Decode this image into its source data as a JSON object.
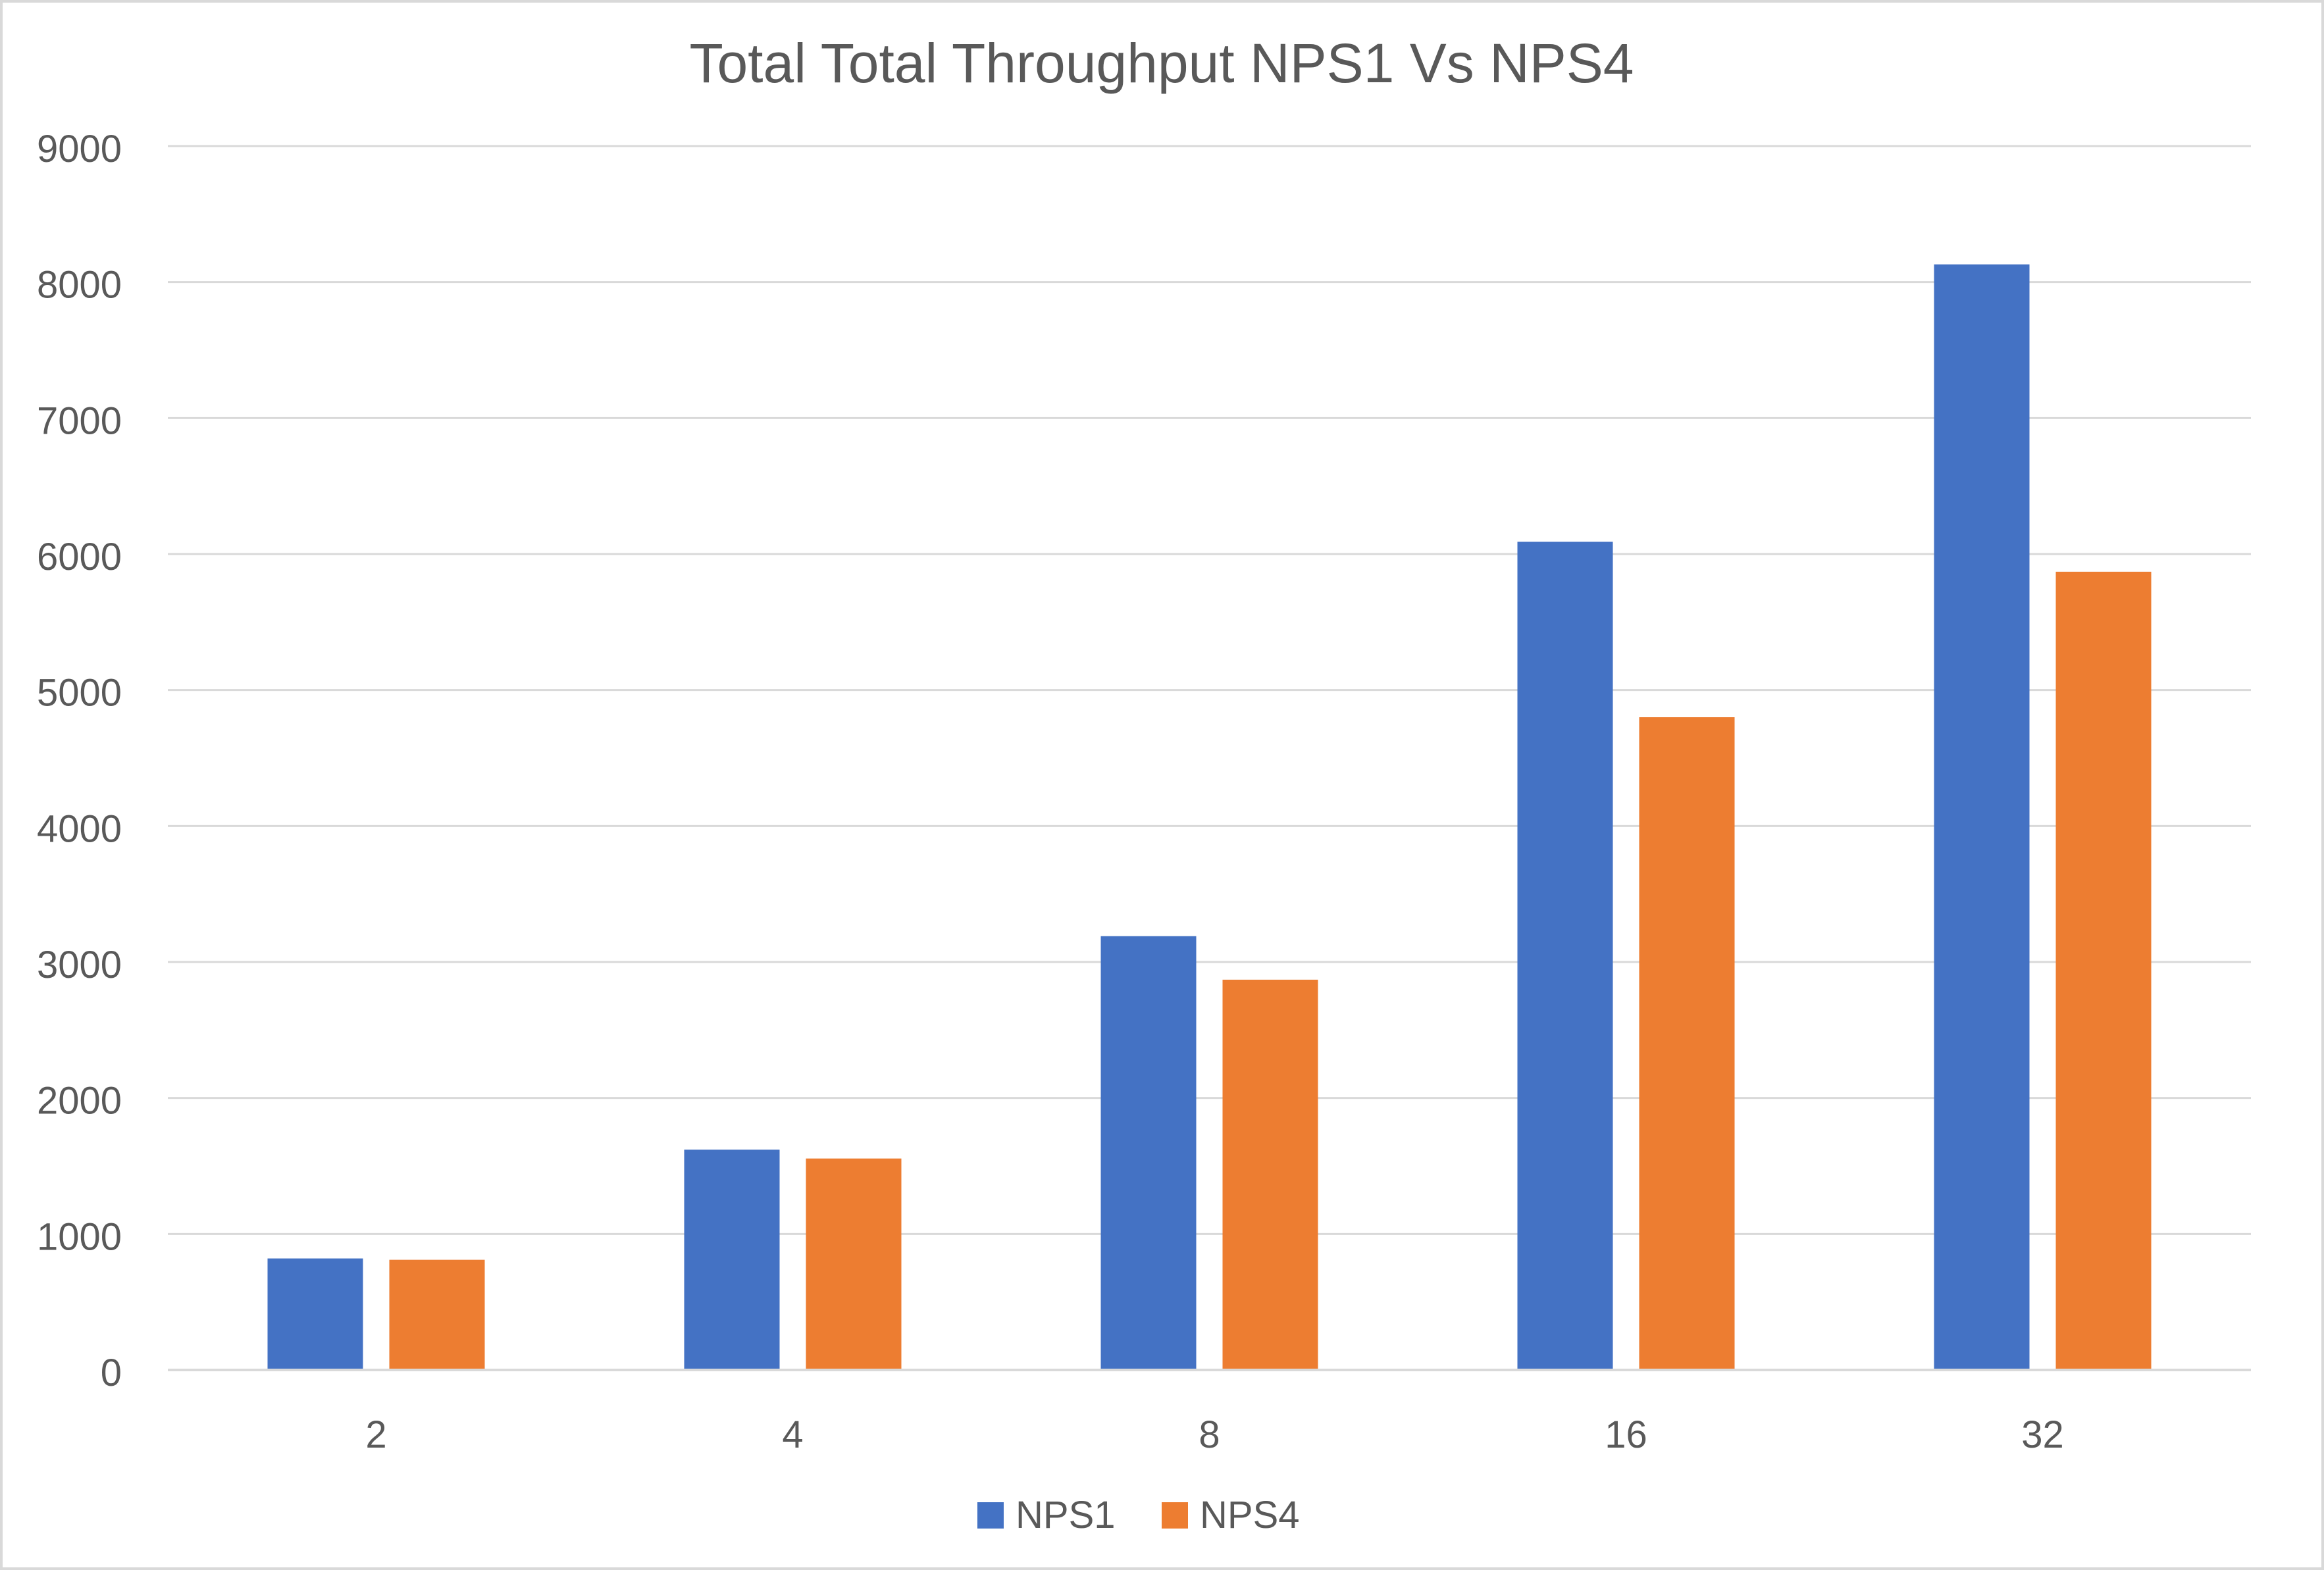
{
  "chart_data": {
    "type": "bar",
    "title": "Total Total Throughput NPS1 Vs NPS4",
    "xlabel": "",
    "ylabel": "",
    "categories": [
      "2",
      "4",
      "8",
      "16",
      "32"
    ],
    "series": [
      {
        "name": "NPS1",
        "color": "#4472C4",
        "values": [
          820,
          1620,
          3190,
          6090,
          8130
        ]
      },
      {
        "name": "NPS4",
        "color": "#ED7D31",
        "values": [
          810,
          1555,
          2870,
          4800,
          5870
        ]
      }
    ],
    "ylim": [
      0,
      9000
    ],
    "yticks": [
      0,
      1000,
      2000,
      3000,
      4000,
      5000,
      6000,
      7000,
      8000,
      9000
    ],
    "grid": true,
    "legend": "bottom-center"
  }
}
